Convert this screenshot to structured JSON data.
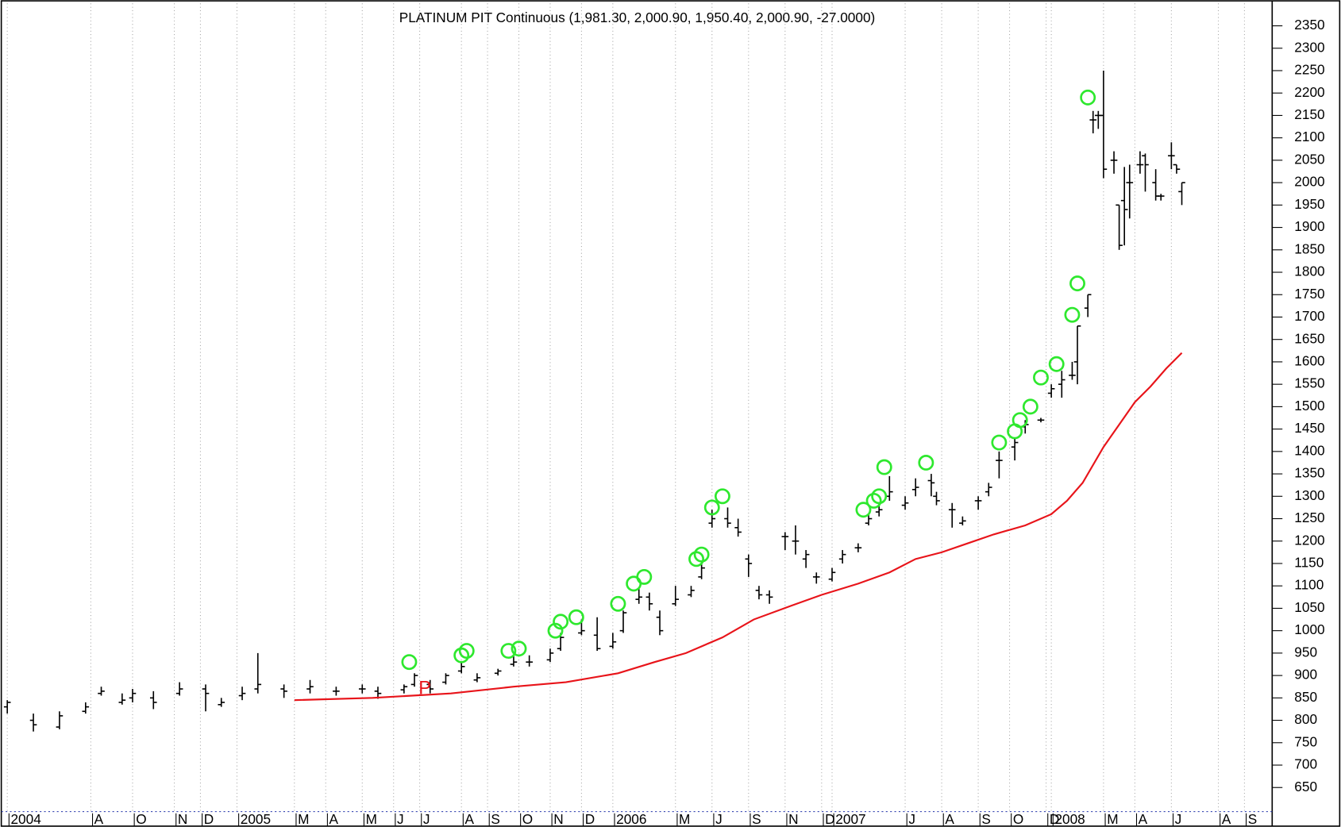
{
  "chart_data": {
    "type": "ohlc",
    "title": "PLATINUM PIT Continuous (1,981.30, 2,000.90, 1,950.40, 2,000.90, -27.0000)",
    "xlim": [
      0,
      241
    ],
    "ylim": [
      600,
      2400
    ],
    "yticks": [
      650,
      700,
      750,
      800,
      850,
      900,
      950,
      1000,
      1050,
      1100,
      1150,
      1200,
      1250,
      1300,
      1350,
      1400,
      1450,
      1500,
      1550,
      1600,
      1650,
      1700,
      1750,
      1800,
      1850,
      1900,
      1950,
      2000,
      2050,
      2100,
      2150,
      2200,
      2250,
      2300,
      2350
    ],
    "xticks": [
      {
        "value": 0,
        "label": "2004"
      },
      {
        "value": 16,
        "label": "A"
      },
      {
        "value": 24,
        "label": "O"
      },
      {
        "value": 32,
        "label": "N"
      },
      {
        "value": 37,
        "label": "D"
      },
      {
        "value": 44,
        "label": "2005"
      },
      {
        "value": 55,
        "label": "M"
      },
      {
        "value": 61,
        "label": "A"
      },
      {
        "value": 68,
        "label": "M"
      },
      {
        "value": 74,
        "label": "J"
      },
      {
        "value": 79,
        "label": "J"
      },
      {
        "value": 87,
        "label": "A"
      },
      {
        "value": 92,
        "label": "S"
      },
      {
        "value": 98,
        "label": "O"
      },
      {
        "value": 104,
        "label": "N"
      },
      {
        "value": 110,
        "label": "D"
      },
      {
        "value": 116,
        "label": "2006"
      },
      {
        "value": 128,
        "label": "M"
      },
      {
        "value": 135,
        "label": "J"
      },
      {
        "value": 142,
        "label": "S"
      },
      {
        "value": 149,
        "label": "N"
      },
      {
        "value": 156,
        "label": "D"
      },
      {
        "value": 158,
        "label": "2007"
      },
      {
        "value": 172,
        "label": "J"
      },
      {
        "value": 179,
        "label": "A"
      },
      {
        "value": 186,
        "label": "S"
      },
      {
        "value": 192,
        "label": "O"
      },
      {
        "value": 199,
        "label": "D"
      },
      {
        "value": 200,
        "label": "2008"
      },
      {
        "value": 210,
        "label": "M"
      },
      {
        "value": 216,
        "label": "A"
      },
      {
        "value": 223,
        "label": "J"
      },
      {
        "value": 232,
        "label": "A"
      },
      {
        "value": 237,
        "label": "S"
      }
    ],
    "grid": true,
    "color": "#000000",
    "x": [
      0,
      5,
      10,
      15,
      18,
      22,
      24,
      28,
      33,
      38,
      41,
      45,
      48,
      53,
      58,
      63,
      68,
      71,
      76,
      78,
      81,
      84,
      87,
      90,
      94,
      97,
      100,
      104,
      106,
      110,
      113,
      116,
      118,
      121,
      123,
      125,
      128,
      131,
      133,
      135,
      138,
      140,
      142,
      144,
      146,
      149,
      151,
      153,
      155,
      158,
      160,
      163,
      165,
      167,
      169,
      172,
      174,
      177,
      178,
      181,
      183,
      186,
      188,
      190,
      193,
      195,
      198,
      200,
      202,
      204,
      205,
      207,
      208,
      209,
      210,
      212,
      213,
      214,
      215,
      217,
      218,
      220,
      221,
      223,
      224,
      225
    ],
    "open": [
      830,
      800,
      785,
      820,
      860,
      840,
      850,
      850,
      860,
      870,
      835,
      855,
      870,
      870,
      870,
      865,
      870,
      865,
      868,
      880,
      880,
      885,
      910,
      890,
      905,
      925,
      930,
      935,
      960,
      995,
      990,
      965,
      1000,
      1070,
      1075,
      1030,
      1060,
      1080,
      1120,
      1240,
      1250,
      1230,
      1160,
      1090,
      1080,
      1210,
      1200,
      1160,
      1120,
      1115,
      1160,
      1185,
      1240,
      1265,
      1300,
      1280,
      1315,
      1335,
      1300,
      1270,
      1240,
      1290,
      1310,
      1380,
      1410,
      1455,
      1470,
      1530,
      1550,
      1570,
      1600,
      1720,
      2140,
      2150,
      2150,
      2050,
      1950,
      1960,
      2000,
      2040,
      2060,
      2000,
      1970,
      2060,
      2040,
      1980
    ],
    "high": [
      845,
      815,
      820,
      840,
      875,
      860,
      870,
      865,
      885,
      880,
      850,
      875,
      950,
      880,
      890,
      875,
      880,
      875,
      880,
      905,
      890,
      905,
      930,
      905,
      915,
      945,
      945,
      960,
      995,
      1025,
      1030,
      995,
      1045,
      1095,
      1085,
      1045,
      1100,
      1100,
      1150,
      1270,
      1275,
      1250,
      1170,
      1100,
      1090,
      1220,
      1235,
      1180,
      1130,
      1140,
      1180,
      1195,
      1260,
      1285,
      1345,
      1300,
      1340,
      1350,
      1310,
      1285,
      1255,
      1300,
      1330,
      1400,
      1430,
      1470,
      1475,
      1550,
      1580,
      1600,
      1680,
      1750,
      2160,
      2160,
      2250,
      2070,
      1950,
      2035,
      2040,
      2070,
      2065,
      2030,
      1975,
      2090,
      2040,
      2000
    ],
    "low": [
      815,
      775,
      780,
      815,
      855,
      835,
      840,
      825,
      855,
      820,
      830,
      845,
      860,
      850,
      860,
      855,
      860,
      848,
      860,
      875,
      860,
      880,
      905,
      885,
      900,
      920,
      920,
      930,
      955,
      990,
      955,
      960,
      995,
      1060,
      1045,
      990,
      1055,
      1075,
      1115,
      1230,
      1230,
      1210,
      1120,
      1070,
      1060,
      1180,
      1170,
      1140,
      1105,
      1110,
      1150,
      1175,
      1235,
      1255,
      1290,
      1270,
      1300,
      1300,
      1280,
      1230,
      1235,
      1270,
      1300,
      1340,
      1380,
      1440,
      1465,
      1520,
      1520,
      1560,
      1550,
      1700,
      2110,
      2120,
      2010,
      2020,
      1850,
      1860,
      1920,
      2020,
      1980,
      1960,
      1960,
      2030,
      2020,
      1950
    ],
    "close": [
      840,
      790,
      810,
      830,
      865,
      845,
      860,
      840,
      870,
      860,
      840,
      860,
      880,
      865,
      875,
      865,
      870,
      860,
      875,
      900,
      870,
      900,
      920,
      895,
      910,
      930,
      930,
      950,
      985,
      1000,
      960,
      975,
      1040,
      1075,
      1060,
      1000,
      1070,
      1090,
      1140,
      1250,
      1240,
      1220,
      1150,
      1080,
      1075,
      1210,
      1200,
      1170,
      1120,
      1130,
      1170,
      1185,
      1250,
      1270,
      1310,
      1285,
      1320,
      1330,
      1290,
      1270,
      1245,
      1290,
      1320,
      1380,
      1420,
      1460,
      1470,
      1540,
      1560,
      1570,
      1680,
      1750,
      2140,
      2150,
      2030,
      2050,
      1860,
      1940,
      2000,
      2040,
      2040,
      1970,
      1970,
      2060,
      2030,
      2000
    ],
    "average": {
      "color": "#e8141a",
      "x": [
        55,
        70,
        85,
        97,
        107,
        117,
        124,
        130,
        137,
        143,
        150,
        156,
        163,
        169,
        174,
        179,
        184,
        189,
        195,
        200,
        203,
        206,
        210,
        213,
        216,
        219,
        222,
        225
      ],
      "values": [
        845,
        850,
        860,
        875,
        885,
        905,
        930,
        950,
        985,
        1025,
        1055,
        1080,
        1105,
        1130,
        1160,
        1175,
        1195,
        1215,
        1235,
        1260,
        1290,
        1330,
        1410,
        1460,
        1510,
        1545,
        1585,
        1620
      ]
    },
    "signals": {
      "color": "#2ee82e",
      "x": [
        77,
        87,
        88,
        96,
        98,
        105,
        106,
        109,
        117,
        120,
        122,
        132,
        133,
        135,
        137,
        164,
        166,
        167,
        168,
        176,
        190,
        193,
        194,
        196,
        198,
        201,
        204,
        205,
        207
      ],
      "values": [
        930,
        945,
        955,
        955,
        960,
        1000,
        1020,
        1030,
        1060,
        1105,
        1120,
        1160,
        1170,
        1275,
        1300,
        1270,
        1290,
        1300,
        1365,
        1375,
        1420,
        1445,
        1470,
        1500,
        1565,
        1595,
        1705,
        1775,
        2190
      ]
    },
    "annotation": {
      "text": "P",
      "x": 80,
      "y": 870,
      "color": "#e8141a"
    }
  }
}
